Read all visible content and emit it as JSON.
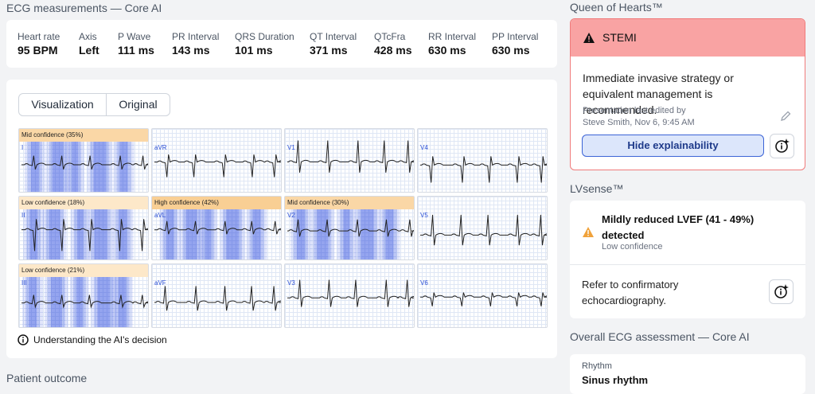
{
  "measurements": {
    "title": "ECG measurements — Core AI",
    "items": [
      {
        "label": "Heart rate",
        "value": "95 BPM"
      },
      {
        "label": "Axis",
        "value": "Left"
      },
      {
        "label": "P Wave",
        "value": "111 ms"
      },
      {
        "label": "PR Interval",
        "value": "143 ms"
      },
      {
        "label": "QRS Duration",
        "value": "101 ms"
      },
      {
        "label": "QT Interval",
        "value": "371 ms"
      },
      {
        "label": "QTcFra",
        "value": "428 ms"
      },
      {
        "label": "RR Interval",
        "value": "630 ms"
      },
      {
        "label": "PP Interval",
        "value": "630 ms"
      }
    ]
  },
  "visualization": {
    "tabs": [
      "Visualization",
      "Original"
    ],
    "leads": [
      {
        "name": "I",
        "confidence": "Mid confidence (35%)"
      },
      {
        "name": "aVR"
      },
      {
        "name": "V1"
      },
      {
        "name": "V4"
      },
      {
        "name": "II",
        "confidence": "Low confidence (18%)"
      },
      {
        "name": "aVL",
        "confidence": "High confidence (42%)"
      },
      {
        "name": "V2",
        "confidence": "Mid confidence (30%)"
      },
      {
        "name": "V5"
      },
      {
        "name": "III",
        "confidence": "Low confidence (21%)"
      },
      {
        "name": "aVF"
      },
      {
        "name": "V3"
      },
      {
        "name": "V6"
      }
    ],
    "help": "Understanding the AI's decision"
  },
  "patient_outcome": {
    "title": "Patient outcome"
  },
  "queen_of_hearts": {
    "title": "Queen of Hearts™",
    "alert": "STEMI",
    "message": "Immediate invasive strategy or equivalent management is recommended.",
    "edited_label": "Presentation last edited by",
    "edited_by": "Steve Smith, Nov 6, 9:45 AM",
    "button": "Hide explainability"
  },
  "lvsense": {
    "title": "LVsense™",
    "finding": "Mildly reduced LVEF (41 - 49%) detected",
    "confidence": "Low confidence",
    "recommendation": "Refer to confirmatory echocardiography."
  },
  "overall": {
    "title": "Overall ECG assessment — Core AI",
    "label": "Rhythm",
    "value": "Sinus rhythm"
  }
}
